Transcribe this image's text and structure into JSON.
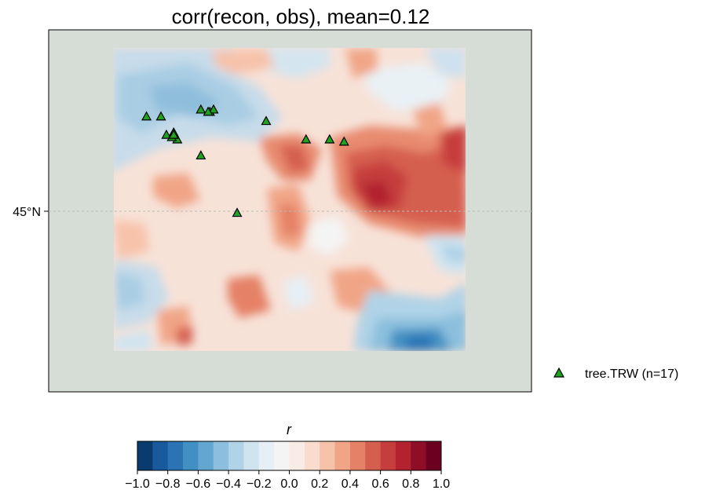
{
  "title": "corr(recon, obs), mean=0.12",
  "latitude_label": "45°N",
  "colorbar": {
    "label": "r",
    "ticks": [
      "−1.0",
      "−0.8",
      "−0.6",
      "−0.4",
      "−0.2",
      "0.0",
      "0.2",
      "0.4",
      "0.6",
      "0.8",
      "1.0"
    ],
    "range": [
      -1.0,
      1.0
    ],
    "levels": 20,
    "colormap": "RdBu_r",
    "colors": [
      "#0a3b6e",
      "#185a9c",
      "#2c73b5",
      "#4290c3",
      "#63a6d0",
      "#8bbfdd",
      "#b0d3e7",
      "#d0e4f0",
      "#e6eff5",
      "#f4f4f4",
      "#f9ece6",
      "#fadccf",
      "#f7c2aa",
      "#f1a587",
      "#e58166",
      "#d55f4f",
      "#c63d3e",
      "#b2222f",
      "#8f0e27",
      "#6b0020"
    ]
  },
  "legend": {
    "label": "tree.TRW (n=17)",
    "marker": "triangle",
    "marker_color": "#1fa31f"
  },
  "map": {
    "background_color": "#d6dcd6",
    "sites": [
      {
        "lon": -110.8,
        "lat": 46.7
      },
      {
        "lon": -110.4,
        "lat": 46.7
      },
      {
        "lon": -110.25,
        "lat": 46.3
      },
      {
        "lon": -110.05,
        "lat": 46.35
      },
      {
        "lon": -109.95,
        "lat": 46.2
      },
      {
        "lon": -110.1,
        "lat": 46.25
      },
      {
        "lon": -109.3,
        "lat": 46.85
      },
      {
        "lon": -109.05,
        "lat": 46.8
      },
      {
        "lon": -108.95,
        "lat": 46.85
      },
      {
        "lon": -109.3,
        "lat": 45.85
      },
      {
        "lon": -108.3,
        "lat": 44.6
      },
      {
        "lon": -107.5,
        "lat": 46.6
      },
      {
        "lon": -106.4,
        "lat": 46.2
      },
      {
        "lon": -105.75,
        "lat": 46.2
      },
      {
        "lon": -105.35,
        "lat": 46.15
      },
      {
        "lon": -110.05,
        "lat": 46.3
      },
      {
        "lon": -109.1,
        "lat": 46.8
      }
    ]
  }
}
